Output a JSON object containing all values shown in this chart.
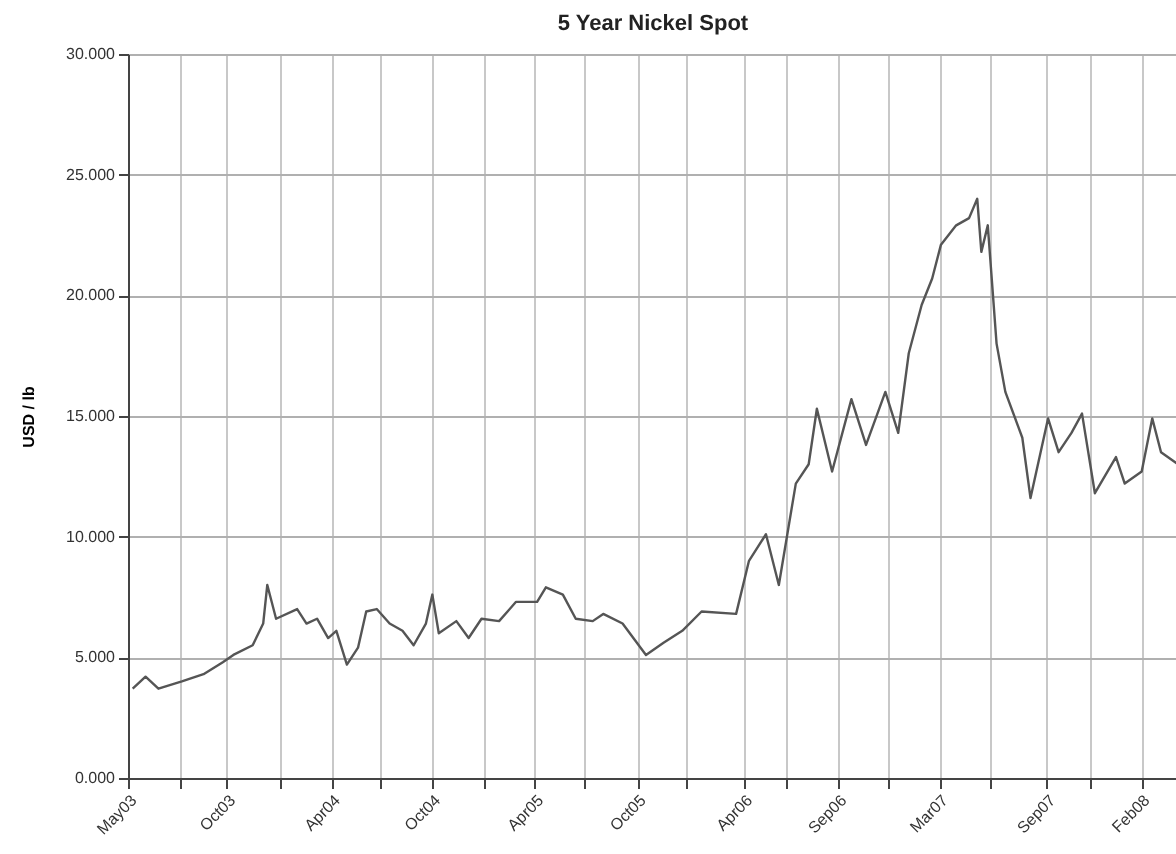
{
  "chart_data": {
    "type": "line",
    "title": "5 Year Nickel Spot",
    "ylabel": "USD / lb",
    "x": [
      "2003-05-23",
      "2003-06-14",
      "2003-07-06",
      "2003-08-15",
      "2003-09-21",
      "2003-10-24",
      "2003-11-11",
      "2003-12-14",
      "2004-01-01",
      "2004-01-08",
      "2004-01-23",
      "2004-02-28",
      "2004-03-15",
      "2004-04-02",
      "2004-04-21",
      "2004-05-05",
      "2004-05-23",
      "2004-06-11",
      "2004-06-25",
      "2004-07-13",
      "2004-08-04",
      "2004-08-26",
      "2004-09-14",
      "2004-10-05",
      "2004-10-16",
      "2004-10-27",
      "2004-11-26",
      "2004-12-17",
      "2005-01-08",
      "2005-02-07",
      "2005-03-08",
      "2005-04-13",
      "2005-04-28",
      "2005-05-27",
      "2005-06-18",
      "2005-07-17",
      "2005-08-04",
      "2005-09-06",
      "2005-10-16",
      "2005-11-15",
      "2005-12-17",
      "2006-01-19",
      "2006-03-19",
      "2006-04-10",
      "2006-05-09",
      "2006-05-31",
      "2006-06-29",
      "2006-07-21",
      "2006-08-04",
      "2006-08-30",
      "2006-10-02",
      "2006-10-27",
      "2006-11-29",
      "2006-12-21",
      "2007-01-08",
      "2007-01-30",
      "2007-02-17",
      "2007-03-04",
      "2007-03-30",
      "2007-04-21",
      "2007-05-05",
      "2007-05-12",
      "2007-05-23",
      "2007-06-07",
      "2007-06-22",
      "2007-07-21",
      "2007-08-04",
      "2007-09-03",
      "2007-09-21",
      "2007-10-13",
      "2007-10-31",
      "2007-11-22",
      "2007-12-28",
      "2008-01-12",
      "2008-02-10",
      "2008-02-28",
      "2008-03-14",
      "2008-04-12"
    ],
    "series": [
      {
        "color": "#555555",
        "values": [
          3.7,
          4.2,
          3.7,
          4.0,
          4.3,
          4.8,
          5.1,
          5.5,
          6.4,
          8.0,
          6.6,
          7.0,
          6.4,
          6.6,
          5.8,
          6.1,
          4.7,
          5.4,
          6.9,
          7.0,
          6.4,
          6.1,
          5.5,
          6.4,
          7.6,
          6.0,
          6.5,
          5.8,
          6.6,
          6.5,
          7.3,
          7.3,
          7.9,
          7.6,
          6.6,
          6.5,
          6.8,
          6.4,
          5.1,
          5.6,
          6.1,
          6.9,
          6.8,
          9.0,
          10.1,
          8.0,
          12.2,
          13.0,
          15.3,
          12.7,
          15.7,
          13.8,
          16.0,
          14.3,
          17.6,
          19.6,
          20.7,
          22.1,
          22.9,
          23.2,
          24.0,
          21.8,
          22.9,
          18.0,
          16.0,
          14.1,
          11.6,
          14.9,
          13.5,
          14.3,
          15.1,
          11.8,
          13.3,
          12.2,
          12.7,
          14.9,
          13.5,
          13.0
        ]
      }
    ],
    "xlim": [
      "2003-05-15",
      "2008-04-12"
    ],
    "xticks": [
      {
        "value": "2003-05-15",
        "label": "May03"
      },
      {
        "value": "2003-08-11",
        "label": null
      },
      {
        "value": "2003-10-31",
        "label": "Oct03"
      },
      {
        "value": "2004-01-29",
        "label": null
      },
      {
        "value": "2004-04-27",
        "label": "Apr04"
      },
      {
        "value": "2004-07-19",
        "label": null
      },
      {
        "value": "2004-10-15",
        "label": "Oct04"
      },
      {
        "value": "2005-01-11",
        "label": null
      },
      {
        "value": "2005-04-09",
        "label": "Apr05"
      },
      {
        "value": "2005-07-01",
        "label": null
      },
      {
        "value": "2005-10-01",
        "label": "Oct05"
      },
      {
        "value": "2005-12-24",
        "label": null
      },
      {
        "value": "2006-04-01",
        "label": "Apr06"
      },
      {
        "value": "2006-06-13",
        "label": null
      },
      {
        "value": "2006-09-09",
        "label": "Sep06"
      },
      {
        "value": "2006-12-02",
        "label": null
      },
      {
        "value": "2007-03-01",
        "label": "Mar07"
      },
      {
        "value": "2007-05-26",
        "label": null
      },
      {
        "value": "2007-09-01",
        "label": "Sep07"
      },
      {
        "value": "2007-11-14",
        "label": null
      },
      {
        "value": "2008-02-09",
        "label": "Feb08"
      }
    ],
    "ylim": [
      0,
      30
    ],
    "yticks": [
      {
        "value": 0,
        "label": "0.000"
      },
      {
        "value": 5,
        "label": "5.000"
      },
      {
        "value": 10,
        "label": "10.000"
      },
      {
        "value": 15,
        "label": "15.000"
      },
      {
        "value": 20,
        "label": "20.000"
      },
      {
        "value": 25,
        "label": "25.000"
      },
      {
        "value": 30,
        "label": "30.000"
      }
    ],
    "grid": true
  }
}
